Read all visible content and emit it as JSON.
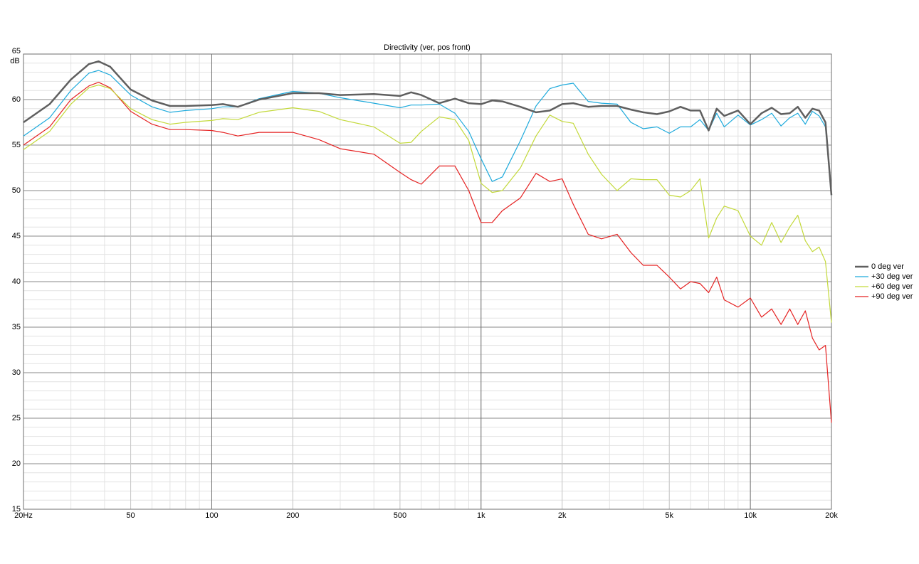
{
  "chart_data": {
    "type": "line",
    "title": "Directivity (ver, pos front)",
    "y_label": "dB",
    "xlog": true,
    "grid": true,
    "minor_grid": true,
    "legend": "right",
    "xlim": [
      20,
      20000
    ],
    "ylim": [
      15,
      65
    ],
    "xticks": [
      {
        "value": 20,
        "label": "20Hz"
      },
      50,
      100,
      200,
      500,
      {
        "value": 1000,
        "label": "1k"
      },
      {
        "value": 2000,
        "label": "2k"
      },
      {
        "value": 5000,
        "label": "5k"
      },
      {
        "value": 10000,
        "label": "10k"
      },
      {
        "value": 20000,
        "label": "20k"
      }
    ],
    "yticks": [
      15,
      20,
      25,
      30,
      35,
      40,
      45,
      50,
      55,
      60,
      65
    ],
    "x": [
      20,
      25,
      30,
      35,
      38,
      42,
      50,
      60,
      70,
      80,
      100,
      110,
      125,
      150,
      200,
      250,
      300,
      400,
      500,
      550,
      600,
      700,
      800,
      900,
      1000,
      1100,
      1200,
      1400,
      1600,
      1800,
      2000,
      2200,
      2500,
      2800,
      3200,
      3600,
      4000,
      4500,
      5000,
      5500,
      6000,
      6500,
      7000,
      7500,
      8000,
      9000,
      10000,
      11000,
      12000,
      13000,
      14000,
      15000,
      16000,
      17000,
      18000,
      19000,
      20000
    ],
    "series": [
      {
        "name": "0 deg ver",
        "color": "#5f5f5f",
        "width": 2.5,
        "values": [
          57.5,
          59.5,
          62.2,
          63.9,
          64.2,
          63.6,
          61.1,
          59.9,
          59.3,
          59.3,
          59.4,
          59.5,
          59.2,
          60.0,
          60.7,
          60.7,
          60.5,
          60.6,
          60.4,
          60.8,
          60.5,
          59.6,
          60.1,
          59.6,
          59.5,
          59.9,
          59.8,
          59.2,
          58.6,
          58.8,
          59.5,
          59.6,
          59.2,
          59.3,
          59.3,
          58.9,
          58.6,
          58.4,
          58.7,
          59.2,
          58.8,
          58.8,
          56.6,
          59.0,
          58.2,
          58.8,
          57.3,
          58.5,
          59.1,
          58.4,
          58.5,
          59.2,
          58.0,
          59.0,
          58.8,
          57.5,
          49.5
        ]
      },
      {
        "name": "+30 deg ver",
        "color": "#1eaadc",
        "width": 1.2,
        "values": [
          56.0,
          58.0,
          61.0,
          62.9,
          63.2,
          62.7,
          60.5,
          59.2,
          58.6,
          58.8,
          59.0,
          59.2,
          59.2,
          60.1,
          60.9,
          60.7,
          60.2,
          59.6,
          59.1,
          59.4,
          59.4,
          59.5,
          58.5,
          56.5,
          53.5,
          51.0,
          51.5,
          55.5,
          59.3,
          61.2,
          61.6,
          61.8,
          59.8,
          59.6,
          59.5,
          57.5,
          56.8,
          57.0,
          56.3,
          57.0,
          57.0,
          57.8,
          56.6,
          58.5,
          57.0,
          58.3,
          57.2,
          57.8,
          58.5,
          57.1,
          58.0,
          58.5,
          57.3,
          58.7,
          58.2,
          57.0,
          49.5
        ]
      },
      {
        "name": "+60 deg ver",
        "color": "#c3d93a",
        "width": 1.2,
        "values": [
          54.5,
          56.5,
          59.5,
          61.3,
          61.6,
          61.2,
          59.0,
          57.8,
          57.3,
          57.5,
          57.7,
          57.9,
          57.8,
          58.6,
          59.1,
          58.7,
          57.8,
          57.0,
          55.2,
          55.3,
          56.5,
          58.1,
          57.8,
          55.5,
          50.8,
          49.8,
          50.0,
          52.5,
          56.0,
          58.3,
          57.6,
          57.4,
          54.0,
          51.8,
          50.0,
          51.3,
          51.2,
          51.2,
          49.5,
          49.3,
          50.0,
          51.3,
          44.8,
          47.0,
          48.3,
          47.8,
          45.0,
          44.0,
          46.5,
          44.3,
          46.0,
          47.3,
          44.5,
          43.3,
          43.8,
          42.2,
          35.5
        ]
      },
      {
        "name": "+90 deg ver",
        "color": "#e52222",
        "width": 1.2,
        "values": [
          55.0,
          57.0,
          60.0,
          61.5,
          61.9,
          61.3,
          58.7,
          57.3,
          56.7,
          56.7,
          56.6,
          56.4,
          56.0,
          56.4,
          56.4,
          55.6,
          54.6,
          54.0,
          52.0,
          51.2,
          50.7,
          52.7,
          52.7,
          50.0,
          46.5,
          46.5,
          47.8,
          49.2,
          51.9,
          51.0,
          51.3,
          48.5,
          45.2,
          44.7,
          45.2,
          43.2,
          41.8,
          41.8,
          40.5,
          39.2,
          40.0,
          39.8,
          38.8,
          40.5,
          38.0,
          37.2,
          38.2,
          36.1,
          37.0,
          35.3,
          37.0,
          35.3,
          36.8,
          33.8,
          32.5,
          33.0,
          24.5
        ]
      }
    ]
  }
}
